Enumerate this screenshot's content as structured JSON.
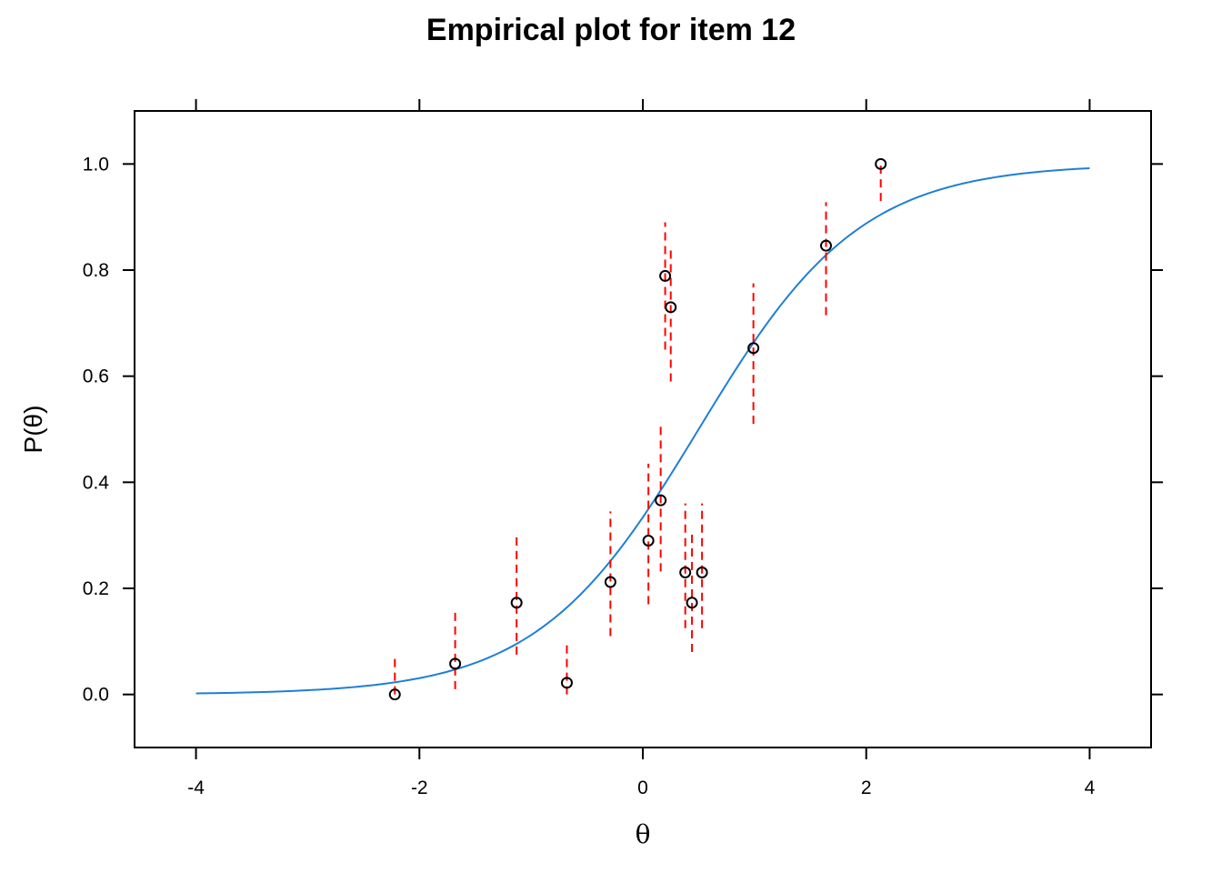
{
  "chart_data": {
    "type": "scatter",
    "title": "Empirical plot for item 12",
    "xlabel": "θ",
    "ylabel": "P(θ)",
    "xlim": [
      -4.55,
      4.55
    ],
    "ylim": [
      -0.1,
      1.1
    ],
    "x_ticks": [
      -4,
      -2,
      0,
      2,
      4
    ],
    "x_tick_labels": [
      "-4",
      "-2",
      "0",
      "2",
      "4"
    ],
    "y_ticks": [
      0.0,
      0.2,
      0.4,
      0.6,
      0.8,
      1.0
    ],
    "y_tick_labels": [
      "0.0",
      "0.2",
      "0.4",
      "0.6",
      "0.8",
      "1.0"
    ],
    "grid": false,
    "curve": {
      "model": "logistic",
      "a": 1.38,
      "b": 0.5,
      "x_range": [
        -4,
        4
      ],
      "color": "#1f7fd6"
    },
    "points": [
      {
        "x": -2.22,
        "y": 0.0,
        "ci_low": 0.0,
        "ci_high": 0.068
      },
      {
        "x": -1.68,
        "y": 0.058,
        "ci_low": 0.01,
        "ci_high": 0.16
      },
      {
        "x": -1.13,
        "y": 0.173,
        "ci_low": 0.075,
        "ci_high": 0.305
      },
      {
        "x": -0.68,
        "y": 0.022,
        "ci_low": 0.0,
        "ci_high": 0.1
      },
      {
        "x": -0.29,
        "y": 0.212,
        "ci_low": 0.11,
        "ci_high": 0.345
      },
      {
        "x": 0.05,
        "y": 0.29,
        "ci_low": 0.17,
        "ci_high": 0.435
      },
      {
        "x": 0.16,
        "y": 0.366,
        "ci_low": 0.232,
        "ci_high": 0.512
      },
      {
        "x": 0.2,
        "y": 0.789,
        "ci_low": 0.65,
        "ci_high": 0.89
      },
      {
        "x": 0.25,
        "y": 0.73,
        "ci_low": 0.59,
        "ci_high": 0.845
      },
      {
        "x": 0.38,
        "y": 0.23,
        "ci_low": 0.125,
        "ci_high": 0.36
      },
      {
        "x": 0.44,
        "y": 0.173,
        "ci_low": 0.08,
        "ci_high": 0.305
      },
      {
        "x": 0.53,
        "y": 0.23,
        "ci_low": 0.125,
        "ci_high": 0.36
      },
      {
        "x": 0.99,
        "y": 0.653,
        "ci_low": 0.51,
        "ci_high": 0.775
      },
      {
        "x": 1.64,
        "y": 0.846,
        "ci_low": 0.715,
        "ci_high": 0.928
      },
      {
        "x": 2.13,
        "y": 1.0,
        "ci_low": 0.93,
        "ci_high": 1.0
      }
    ],
    "point_color": "#000000",
    "ci_color": "#ff0000"
  }
}
